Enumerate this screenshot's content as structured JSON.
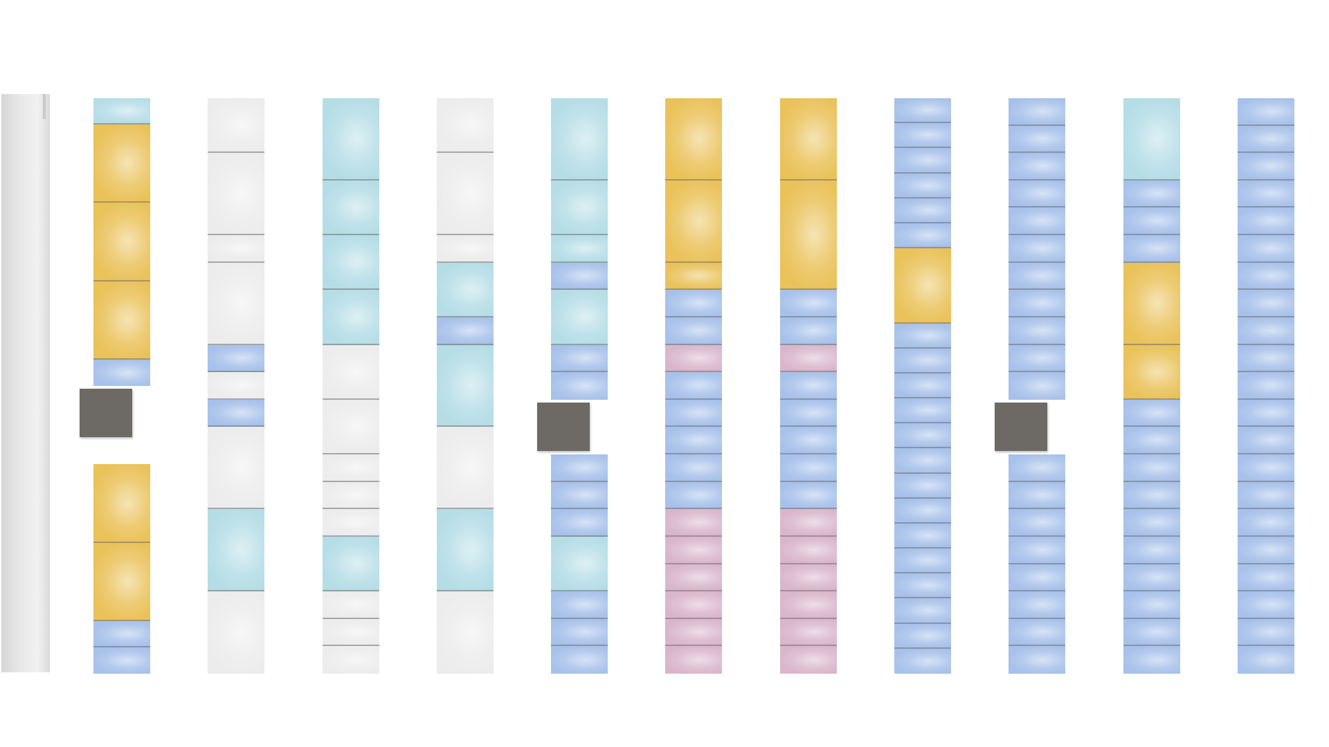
{
  "colors": {
    "yellow": "#eac25a",
    "white": "#ececec",
    "cyan": "#b5dde6",
    "blue": "#a7c1ea",
    "pink": "#d9b6cb",
    "box": "#6d6a66",
    "wall": "#e6e6e6"
  },
  "panels": [
    {
      "id": "panel-1",
      "segments": [
        [
          "cyan",
          1
        ],
        [
          "yellow",
          3
        ],
        [
          "yellow",
          3
        ],
        [
          "yellow",
          3
        ],
        [
          "blue",
          1
        ],
        [
          "gap",
          3
        ],
        [
          "yellow",
          3
        ],
        [
          "yellow",
          3
        ],
        [
          "blue",
          1
        ],
        [
          "blue",
          1
        ]
      ],
      "box_after_segment": 4
    },
    {
      "id": "panel-2",
      "segments": [
        [
          "white",
          2
        ],
        [
          "white",
          3
        ],
        [
          "white",
          1
        ],
        [
          "white",
          3
        ],
        [
          "blue",
          1
        ],
        [
          "white",
          1
        ],
        [
          "blue",
          1
        ],
        [
          "white",
          3
        ],
        [
          "cyan",
          3
        ],
        [
          "white",
          3
        ]
      ]
    },
    {
      "id": "panel-3",
      "segments": [
        [
          "cyan",
          3
        ],
        [
          "cyan",
          2
        ],
        [
          "cyan",
          2
        ],
        [
          "cyan",
          2
        ],
        [
          "white",
          2
        ],
        [
          "white",
          2
        ],
        [
          "white",
          1
        ],
        [
          "white",
          1
        ],
        [
          "white",
          1
        ],
        [
          "cyan",
          2
        ],
        [
          "white",
          1
        ],
        [
          "white",
          1
        ],
        [
          "white",
          1
        ]
      ]
    },
    {
      "id": "panel-4",
      "segments": [
        [
          "white",
          2
        ],
        [
          "white",
          3
        ],
        [
          "white",
          1
        ],
        [
          "cyan",
          2
        ],
        [
          "blue",
          1
        ],
        [
          "cyan",
          3
        ],
        [
          "white",
          3
        ],
        [
          "cyan",
          3
        ],
        [
          "white",
          3
        ]
      ]
    },
    {
      "id": "panel-5",
      "segments": [
        [
          "cyan",
          3
        ],
        [
          "cyan",
          2
        ],
        [
          "cyan",
          1
        ],
        [
          "blue",
          1
        ],
        [
          "cyan",
          2
        ],
        [
          "blue",
          1
        ],
        [
          "blue",
          1
        ],
        [
          "gap",
          2
        ],
        [
          "blue",
          1
        ],
        [
          "blue",
          1
        ],
        [
          "blue",
          1
        ],
        [
          "cyan",
          2
        ],
        [
          "blue",
          1
        ],
        [
          "blue",
          1
        ],
        [
          "blue",
          1
        ]
      ],
      "box_after_segment": 6
    },
    {
      "id": "panel-6",
      "segments": [
        [
          "yellow",
          3
        ],
        [
          "yellow",
          3
        ],
        [
          "yellow",
          1
        ],
        [
          "blue",
          1
        ],
        [
          "blue",
          1
        ],
        [
          "pink",
          1
        ],
        [
          "blue",
          1
        ],
        [
          "blue",
          1
        ],
        [
          "blue",
          1
        ],
        [
          "blue",
          1
        ],
        [
          "blue",
          1
        ],
        [
          "pink",
          1
        ],
        [
          "pink",
          1
        ],
        [
          "pink",
          1
        ],
        [
          "pink",
          1
        ],
        [
          "pink",
          1
        ],
        [
          "pink",
          1
        ]
      ]
    },
    {
      "id": "panel-7",
      "segments": [
        [
          "yellow",
          3
        ],
        [
          "yellow",
          4
        ],
        [
          "blue",
          1
        ],
        [
          "blue",
          1
        ],
        [
          "pink",
          1
        ],
        [
          "blue",
          1
        ],
        [
          "blue",
          1
        ],
        [
          "blue",
          1
        ],
        [
          "blue",
          1
        ],
        [
          "blue",
          1
        ],
        [
          "pink",
          1
        ],
        [
          "pink",
          1
        ],
        [
          "pink",
          1
        ],
        [
          "pink",
          1
        ],
        [
          "pink",
          1
        ],
        [
          "pink",
          1
        ]
      ]
    },
    {
      "id": "panel-8",
      "segments": [
        [
          "blue",
          1
        ],
        [
          "blue",
          1
        ],
        [
          "blue",
          1
        ],
        [
          "blue",
          1
        ],
        [
          "blue",
          1
        ],
        [
          "blue",
          1
        ],
        [
          "yellow",
          3
        ],
        [
          "blue",
          1
        ],
        [
          "blue",
          1
        ],
        [
          "blue",
          1
        ],
        [
          "blue",
          1
        ],
        [
          "blue",
          1
        ],
        [
          "blue",
          1
        ],
        [
          "blue",
          1
        ],
        [
          "blue",
          1
        ],
        [
          "blue",
          1
        ],
        [
          "blue",
          1
        ],
        [
          "blue",
          1
        ],
        [
          "blue",
          1
        ],
        [
          "blue",
          1
        ],
        [
          "blue",
          1
        ]
      ]
    },
    {
      "id": "panel-9",
      "segments": [
        [
          "blue",
          1
        ],
        [
          "blue",
          1
        ],
        [
          "blue",
          1
        ],
        [
          "blue",
          1
        ],
        [
          "blue",
          1
        ],
        [
          "blue",
          1
        ],
        [
          "blue",
          1
        ],
        [
          "blue",
          1
        ],
        [
          "blue",
          1
        ],
        [
          "blue",
          1
        ],
        [
          "blue",
          1
        ],
        [
          "gap",
          2
        ],
        [
          "blue",
          1
        ],
        [
          "blue",
          1
        ],
        [
          "blue",
          1
        ],
        [
          "blue",
          1
        ],
        [
          "blue",
          1
        ],
        [
          "blue",
          1
        ],
        [
          "blue",
          1
        ],
        [
          "blue",
          1
        ]
      ],
      "box_after_segment": 10
    },
    {
      "id": "panel-10",
      "segments": [
        [
          "cyan",
          3
        ],
        [
          "blue",
          1
        ],
        [
          "blue",
          1
        ],
        [
          "blue",
          1
        ],
        [
          "yellow",
          3
        ],
        [
          "yellow",
          2
        ],
        [
          "blue",
          1
        ],
        [
          "blue",
          1
        ],
        [
          "blue",
          1
        ],
        [
          "blue",
          1
        ],
        [
          "blue",
          1
        ],
        [
          "blue",
          1
        ],
        [
          "blue",
          1
        ],
        [
          "blue",
          1
        ],
        [
          "blue",
          1
        ],
        [
          "blue",
          1
        ]
      ]
    },
    {
      "id": "panel-11",
      "segments": [
        [
          "blue",
          1
        ],
        [
          "blue",
          1
        ],
        [
          "blue",
          1
        ],
        [
          "blue",
          1
        ],
        [
          "blue",
          1
        ],
        [
          "blue",
          1
        ],
        [
          "blue",
          1
        ],
        [
          "blue",
          1
        ],
        [
          "blue",
          1
        ],
        [
          "blue",
          1
        ],
        [
          "blue",
          1
        ],
        [
          "blue",
          1
        ],
        [
          "blue",
          1
        ],
        [
          "blue",
          1
        ],
        [
          "blue",
          1
        ],
        [
          "blue",
          1
        ],
        [
          "blue",
          1
        ],
        [
          "blue",
          1
        ],
        [
          "blue",
          1
        ],
        [
          "blue",
          1
        ],
        [
          "blue",
          1
        ]
      ]
    }
  ]
}
